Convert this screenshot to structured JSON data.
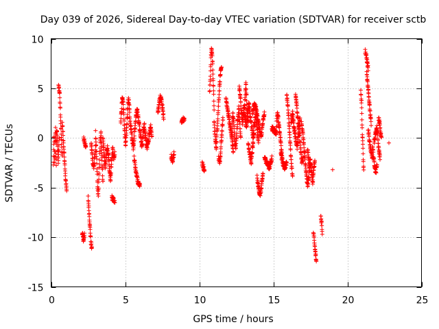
{
  "chart_data": {
    "type": "scatter",
    "title": "Day 039 of 2026, Sidereal Day-to-day VTEC variation (SDTVAR) for receiver sctb",
    "xlabel": "GPS time / hours",
    "ylabel": "SDTVAR / TECUs",
    "xlim": [
      0,
      25
    ],
    "ylim": [
      -15,
      10
    ],
    "xticks": [
      0,
      5,
      10,
      15,
      20,
      25
    ],
    "xtick_labels": [
      "0",
      "5",
      "10",
      "15",
      "20",
      "25"
    ],
    "yticks": [
      -15,
      -10,
      -5,
      0,
      5,
      10
    ],
    "ytick_labels": [
      "-15",
      "-10",
      "-5",
      "0",
      "5",
      "10"
    ],
    "grid": true,
    "marker": "plus",
    "color": "#ff0000",
    "segments": [
      {
        "x0": 0.15,
        "x1": 0.35,
        "y": [
          -2.8,
          -1.5,
          0.5,
          -2.0,
          -2.5,
          0.0,
          1.0,
          -1.5,
          -2.7
        ]
      },
      {
        "x0": 0.35,
        "x1": 0.55,
        "y": [
          -0.5,
          0.8,
          0.3,
          -1.5,
          -2.5,
          -1.0,
          0.2
        ]
      },
      {
        "x0": 0.5,
        "x1": 0.75,
        "y": [
          5.3,
          5.0,
          4.5,
          3.5,
          2.0,
          0.5,
          -1.0,
          -1.8
        ]
      },
      {
        "x0": 0.75,
        "x1": 1.05,
        "y": [
          1.5,
          0.5,
          -1.0,
          -2.0,
          -3.5,
          -4.5,
          -5.3
        ]
      },
      {
        "x0": 2.1,
        "x1": 2.25,
        "y": [
          -9.5,
          -10.0,
          -10.3,
          -9.8
        ]
      },
      {
        "x0": 2.2,
        "x1": 2.35,
        "y": [
          0.0,
          -0.5,
          -1.0
        ]
      },
      {
        "x0": 2.5,
        "x1": 2.75,
        "y": [
          -6.0,
          -7.5,
          -9.0,
          -10.5,
          -11.2
        ]
      },
      {
        "x0": 2.7,
        "x1": 3.0,
        "y": [
          -0.5,
          -1.5,
          -2.5,
          -3.0,
          -2.0,
          -1.0
        ]
      },
      {
        "x0": 3.0,
        "x1": 3.5,
        "y": [
          0.5,
          -1.0,
          -3.0,
          -5.0,
          -5.8,
          -4.0,
          -2.0,
          -0.5,
          0.5,
          -1.5,
          -3.0,
          -4.5
        ]
      },
      {
        "x0": 3.5,
        "x1": 4.3,
        "y": [
          0.0,
          -1.5,
          -3.0,
          -2.0,
          -0.8,
          -1.8,
          -3.2,
          -4.2,
          -2.5,
          -1.0,
          -2.0,
          -1.5
        ]
      },
      {
        "x0": 4.1,
        "x1": 4.3,
        "y": [
          -6.0,
          -6.3
        ]
      },
      {
        "x0": 4.7,
        "x1": 5.3,
        "y": [
          1.5,
          3.0,
          4.2,
          3.5,
          2.0,
          0.5,
          -0.8,
          0.5,
          2.0,
          3.5,
          4.0,
          2.5
        ]
      },
      {
        "x0": 5.3,
        "x1": 5.8,
        "y": [
          2.0,
          1.0,
          0.0,
          -1.0,
          0.5,
          2.0,
          3.0
        ]
      },
      {
        "x0": 5.6,
        "x1": 6.0,
        "y": [
          -2.0,
          -3.5,
          -4.5,
          -4.8
        ]
      },
      {
        "x0": 5.8,
        "x1": 6.3,
        "y": [
          3.0,
          2.0,
          1.0,
          0.0,
          -1.0,
          0.5,
          1.5
        ]
      },
      {
        "x0": 6.3,
        "x1": 6.8,
        "y": [
          1.0,
          0.0,
          -1.0,
          -0.5,
          0.5,
          1.2,
          0.0
        ]
      },
      {
        "x0": 7.2,
        "x1": 7.6,
        "y": [
          2.5,
          3.5,
          4.2,
          4.0,
          3.0,
          2.0
        ]
      },
      {
        "x0": 8.1,
        "x1": 8.3,
        "y": [
          -1.8,
          -2.3,
          -1.5
        ]
      },
      {
        "x0": 8.8,
        "x1": 9.0,
        "y": [
          1.5,
          2.0,
          1.8
        ]
      },
      {
        "x0": 10.2,
        "x1": 10.35,
        "y": [
          -2.5,
          -3.3
        ]
      },
      {
        "x0": 10.7,
        "x1": 11.0,
        "y": [
          4.5,
          6.0,
          8.0,
          9.0,
          8.5,
          7.0,
          5.0,
          3.0
        ]
      },
      {
        "x0": 11.0,
        "x1": 11.5,
        "y": [
          1.5,
          0.0,
          -1.0,
          1.0,
          3.0,
          5.0,
          6.5,
          7.0
        ]
      },
      {
        "x0": 11.3,
        "x1": 11.6,
        "y": [
          -2.0,
          -2.5,
          0.0,
          2.0
        ]
      },
      {
        "x0": 11.8,
        "x1": 12.3,
        "y": [
          4.0,
          3.0,
          2.0,
          1.0,
          0.0,
          -1.5
        ]
      },
      {
        "x0": 12.2,
        "x1": 12.8,
        "y": [
          0.0,
          2.5,
          1.5,
          -0.5,
          -1.0,
          0.5,
          2.0,
          3.0,
          1.5,
          0.0
        ]
      },
      {
        "x0": 12.7,
        "x1": 13.3,
        "y": [
          5.0,
          4.0,
          2.5,
          1.5,
          2.5,
          3.5,
          5.5,
          3.0,
          1.5
        ]
      },
      {
        "x0": 13.0,
        "x1": 14.0,
        "y": [
          3.0,
          2.0,
          1.0,
          2.5,
          3.5,
          2.0,
          1.0,
          0.0,
          1.5,
          2.5,
          1.0,
          -0.5
        ]
      },
      {
        "x0": 13.3,
        "x1": 13.7,
        "y": [
          -0.5,
          -1.5,
          -2.5,
          -1.0,
          0.5
        ]
      },
      {
        "x0": 13.6,
        "x1": 14.4,
        "y": [
          2.5,
          3.5,
          3.0,
          2.0,
          1.0,
          0.0,
          1.5,
          2.5
        ]
      },
      {
        "x0": 13.9,
        "x1": 14.3,
        "y": [
          -4.0,
          -5.0,
          -5.8,
          -5.0,
          -3.5
        ]
      },
      {
        "x0": 14.4,
        "x1": 14.9,
        "y": [
          -2.0,
          -2.5,
          -3.0,
          -2.0
        ]
      },
      {
        "x0": 14.9,
        "x1": 15.2,
        "y": [
          1.0,
          0.5
        ]
      },
      {
        "x0": 15.2,
        "x1": 15.6,
        "y": [
          1.0,
          2.5,
          2.0,
          1.0,
          0.0,
          -1.0,
          -2.0
        ]
      },
      {
        "x0": 15.5,
        "x1": 15.9,
        "y": [
          -1.5,
          -2.5,
          -3.0,
          -2.5
        ]
      },
      {
        "x0": 15.9,
        "x1": 16.3,
        "y": [
          4.3,
          3.5,
          2.0,
          0.5,
          -1.5,
          -3.0,
          -3.8
        ]
      },
      {
        "x0": 16.2,
        "x1": 16.8,
        "y": [
          1.5,
          2.5,
          1.0,
          0.0,
          -1.0,
          0.5,
          2.0
        ]
      },
      {
        "x0": 16.5,
        "x1": 17.0,
        "y": [
          4.5,
          3.5,
          2.0,
          1.0,
          0.0,
          -1.5,
          -2.5,
          -2.0
        ]
      },
      {
        "x0": 16.9,
        "x1": 17.5,
        "y": [
          1.5,
          0.5,
          -1.0,
          -2.5,
          -4.0,
          -4.8,
          -3.5,
          -2.0
        ]
      },
      {
        "x0": 17.3,
        "x1": 17.8,
        "y": [
          -1.0,
          -2.0,
          -3.0,
          -2.5,
          -3.5,
          -4.5,
          -3.0,
          -2.5
        ]
      },
      {
        "x0": 17.7,
        "x1": 17.9,
        "y": [
          -9.3,
          -10.5,
          -11.5,
          -12.5
        ]
      },
      {
        "x0": 18.2,
        "x1": 18.3,
        "y": [
          -7.8,
          -8.5,
          -9.5
        ]
      },
      {
        "x0": 19.0,
        "x1": 19.0,
        "y": [
          -3.2
        ]
      },
      {
        "x0": 20.9,
        "x1": 21.1,
        "y": [
          4.8,
          4.0,
          3.5,
          1.5,
          0.0,
          -0.5,
          -2.5,
          -3.2
        ]
      },
      {
        "x0": 21.2,
        "x1": 21.4,
        "y": [
          8.8,
          8.0,
          7.0
        ]
      },
      {
        "x0": 21.3,
        "x1": 21.6,
        "y": [
          6.5,
          5.5,
          4.5,
          3.5,
          2.5,
          1.5
        ]
      },
      {
        "x0": 21.4,
        "x1": 21.7,
        "y": [
          1.0,
          -0.5,
          -1.5,
          -2.0
        ]
      },
      {
        "x0": 21.7,
        "x1": 22.0,
        "y": [
          -1.0,
          -2.0,
          -3.0,
          -3.5,
          -2.5
        ]
      },
      {
        "x0": 21.8,
        "x1": 22.2,
        "y": [
          -0.5,
          0.5,
          1.0,
          -1.0,
          -2.0
        ]
      },
      {
        "x0": 22.1,
        "x1": 22.3,
        "y": [
          2.0,
          1.5,
          0.5,
          0.0
        ]
      },
      {
        "x0": 22.8,
        "x1": 22.9,
        "y": [
          -0.5
        ]
      }
    ]
  }
}
